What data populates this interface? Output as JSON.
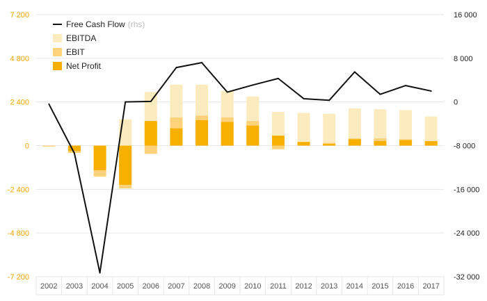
{
  "chart_data": {
    "type": "bar",
    "categories": [
      "2002",
      "2003",
      "2004",
      "2005",
      "2006",
      "2007",
      "2008",
      "2009",
      "2010",
      "2011",
      "2012",
      "2013",
      "2014",
      "2015",
      "2016",
      "2017"
    ],
    "series": [
      {
        "name": "EBITDA",
        "axis": "left",
        "color": "#fdebc0",
        "values": [
          -50,
          -300,
          -1400,
          1450,
          2950,
          3350,
          3350,
          3000,
          2700,
          1850,
          1800,
          1750,
          2050,
          2000,
          1950,
          1600
        ]
      },
      {
        "name": "EBIT",
        "axis": "left",
        "color": "#fdd27a",
        "values": [
          -50,
          -400,
          -1700,
          -2350,
          -450,
          1550,
          1650,
          1550,
          1350,
          -200,
          200,
          150,
          400,
          400,
          350,
          250
        ]
      },
      {
        "name": "Net Profit",
        "axis": "left",
        "color": "#f7b000",
        "values": [
          0,
          -300,
          -1350,
          -2150,
          1350,
          950,
          1400,
          1300,
          1100,
          550,
          200,
          100,
          350,
          250,
          300,
          250
        ]
      },
      {
        "name": "Free Cash Flow",
        "axis": "right",
        "type": "line",
        "color": "#111111",
        "values": [
          -400,
          -9400,
          -31300,
          0,
          100,
          6300,
          7200,
          1800,
          3100,
          4300,
          600,
          300,
          5500,
          1400,
          3000,
          2000
        ]
      }
    ],
    "left_axis": {
      "range": [
        -7200,
        7200
      ],
      "ticks": [
        7200,
        4800,
        2400,
        0,
        -2400,
        -4800,
        -7200
      ],
      "tick_labels": [
        "7 200",
        "4 800",
        "2 400",
        "0",
        "-2 400",
        "-4 800",
        "-7 200"
      ]
    },
    "right_axis": {
      "range": [
        -32000,
        16000
      ],
      "ticks": [
        16000,
        8000,
        0,
        -8000,
        -16000,
        -24000,
        -32000
      ],
      "tick_labels": [
        "16 000",
        "8 000",
        "0",
        "-8 000",
        "-16 000",
        "-24 000",
        "-32 000"
      ]
    },
    "grid": true,
    "legend": {
      "placement": "top-left",
      "items": [
        {
          "label": "Free Cash Flow",
          "note": "(rhs)",
          "kind": "line",
          "color": "#111111"
        },
        {
          "label": "EBITDA",
          "kind": "swatch",
          "color": "#fdebc0"
        },
        {
          "label": "EBIT",
          "kind": "swatch",
          "color": "#fdd27a"
        },
        {
          "label": "Net Profit",
          "kind": "swatch",
          "color": "#f7b000"
        }
      ]
    },
    "colors": {
      "left_tick": "#f0a400",
      "right_tick": "#222222",
      "x_tick": "#555555",
      "grid": "#e6e6e6"
    }
  }
}
